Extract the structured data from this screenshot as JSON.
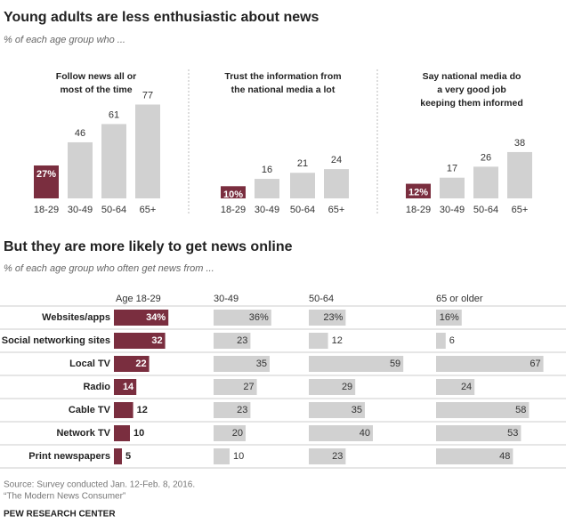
{
  "header": {
    "title": "Young adults are less enthusiastic about news",
    "subtitle": "% of each age group who ..."
  },
  "section2": {
    "title": "But they are more likely to get news online",
    "subtitle": "% of each age group who often get news from ..."
  },
  "chart_data": [
    {
      "type": "column",
      "title_lines": [
        "Follow news all or",
        "most of the time"
      ],
      "categories": [
        "18-29",
        "30-49",
        "50-64",
        "65+"
      ],
      "values": [
        27,
        46,
        61,
        77
      ],
      "value_labels": [
        "27%",
        "46",
        "61",
        "77"
      ],
      "colors": [
        "#7a2e3f",
        "#d1d1d1",
        "#d1d1d1",
        "#d1d1d1"
      ]
    },
    {
      "type": "column",
      "title_lines": [
        "Trust the information from",
        "the national media a lot"
      ],
      "categories": [
        "18-29",
        "30-49",
        "50-64",
        "65+"
      ],
      "values": [
        10,
        16,
        21,
        24
      ],
      "value_labels": [
        "10%",
        "16",
        "21",
        "24"
      ],
      "colors": [
        "#7a2e3f",
        "#d1d1d1",
        "#d1d1d1",
        "#d1d1d1"
      ]
    },
    {
      "type": "column",
      "title_lines": [
        "Say national media do",
        "a very good job",
        "keeping them informed"
      ],
      "categories": [
        "18-29",
        "30-49",
        "50-64",
        "65+"
      ],
      "values": [
        12,
        17,
        26,
        38
      ],
      "value_labels": [
        "12%",
        "17",
        "26",
        "38"
      ],
      "colors": [
        "#7a2e3f",
        "#d1d1d1",
        "#d1d1d1",
        "#d1d1d1"
      ]
    },
    {
      "type": "hbar-panels",
      "categories": [
        "Websites/apps",
        "Social networking sites",
        "Local TV",
        "Radio",
        "Cable TV",
        "Network TV",
        "Print newspapers"
      ],
      "series": [
        {
          "name": "Age 18-29",
          "color": "#7a2e3f",
          "values": [
            34,
            32,
            22,
            14,
            12,
            10,
            5
          ],
          "value_labels": [
            "34%",
            "32",
            "22",
            "14",
            "12",
            "10",
            "5"
          ]
        },
        {
          "name": "30-49",
          "color": "#d1d1d1",
          "values": [
            36,
            23,
            35,
            27,
            23,
            20,
            10
          ],
          "value_labels": [
            "36%",
            "23",
            "35",
            "27",
            "23",
            "20",
            "10"
          ]
        },
        {
          "name": "50-64",
          "color": "#d1d1d1",
          "values": [
            23,
            12,
            59,
            29,
            35,
            40,
            23
          ],
          "value_labels": [
            "23%",
            "12",
            "59",
            "29",
            "35",
            "40",
            "23"
          ]
        },
        {
          "name": "65 or older",
          "color": "#d1d1d1",
          "values": [
            16,
            6,
            67,
            24,
            58,
            53,
            48
          ],
          "value_labels": [
            "16%",
            "6",
            "67",
            "24",
            "58",
            "53",
            "48"
          ]
        }
      ]
    }
  ],
  "footer": {
    "source": "Source: Survey conducted Jan. 12-Feb. 8, 2016.",
    "report": "“The Modern News Consumer”",
    "org": "PEW RESEARCH CENTER"
  }
}
